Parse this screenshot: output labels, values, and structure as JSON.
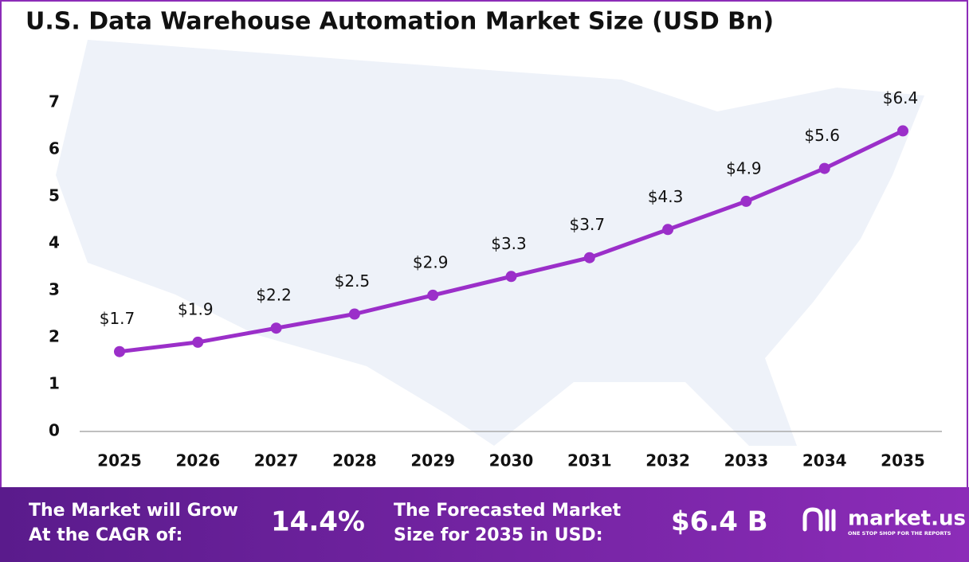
{
  "chart_data": {
    "type": "line",
    "title": "U.S. Data Warehouse Automation Market Size (USD Bn)",
    "categories": [
      "2025",
      "2026",
      "2027",
      "2028",
      "2029",
      "2030",
      "2031",
      "2032",
      "2033",
      "2034",
      "2035"
    ],
    "values": [
      1.7,
      1.9,
      2.2,
      2.5,
      2.9,
      3.3,
      3.7,
      4.3,
      4.9,
      5.6,
      6.4
    ],
    "value_labels": [
      "$1.7",
      "$1.9",
      "$2.2",
      "$2.5",
      "$2.9",
      "$3.3",
      "$3.7",
      "$4.3",
      "$4.9",
      "$5.6",
      "$6.4"
    ],
    "color": "#9b2fc9",
    "ylim": [
      0,
      7
    ],
    "yticks": [
      0,
      1,
      2,
      3,
      4,
      5,
      6,
      7
    ],
    "grid": false
  },
  "footer": {
    "cagr_text": [
      "The Market will Grow",
      "At the CAGR of:"
    ],
    "cagr_value": "14.4%",
    "forecast_text": [
      "The Forecasted Market",
      "Size for 2035 in USD:"
    ],
    "forecast_value": "$6.4 B",
    "brand": "market.us",
    "tagline": "ONE STOP SHOP FOR THE REPORTS"
  }
}
